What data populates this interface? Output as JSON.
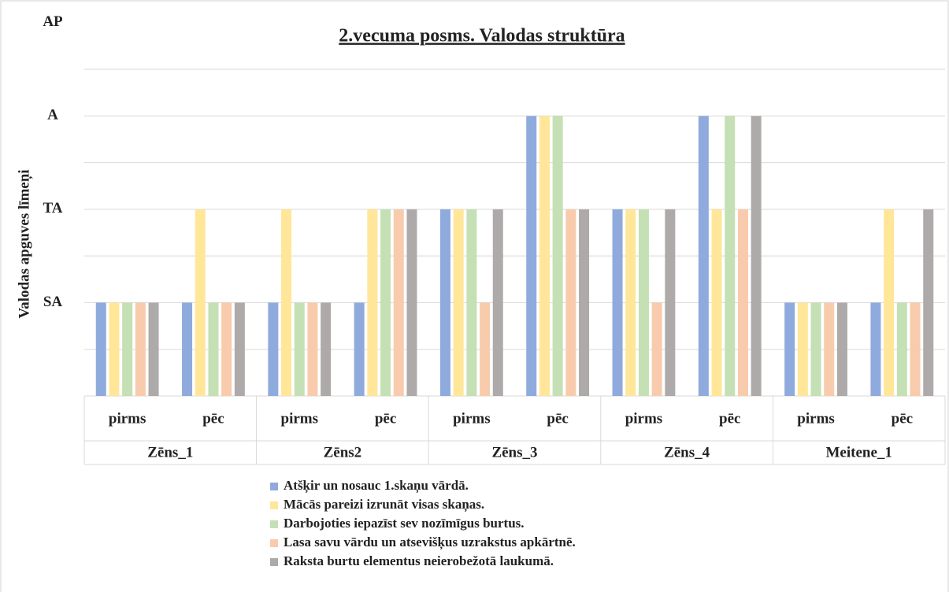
{
  "chart_data": {
    "type": "bar",
    "title": "2.vecuma posms. Valodas struktūra",
    "y_label": "Valodas apguves līmeņi",
    "categories": [
      "pirms",
      "pēc",
      "pirms",
      "pēc",
      "pirms",
      "pēc",
      "pirms",
      "pēc",
      "pirms",
      "pēc"
    ],
    "groups": [
      "Zēns_1",
      "Zēns2",
      "Zēns_3",
      "Zēns_4",
      "Meitene_1"
    ],
    "series": [
      {
        "name": "Atšķir un nosauc 1.skaņu vārdā.",
        "color": "#8faadc",
        "values": [
          1,
          1,
          1,
          1,
          2,
          3,
          2,
          3,
          1,
          1
        ]
      },
      {
        "name": "Mācās pareizi izrunāt visas skaņas.",
        "color": "#ffe699",
        "values": [
          1,
          2,
          2,
          2,
          2,
          3,
          2,
          2,
          1,
          2
        ]
      },
      {
        "name": "Darbojoties iepazīst sev nozīmīgus burtus.",
        "color": "#c5e0b4",
        "values": [
          1,
          1,
          1,
          2,
          2,
          3,
          2,
          3,
          1,
          1
        ]
      },
      {
        "name": "Lasa savu vārdu un atsevišķus uzrakstus apkārtnē.",
        "color": "#f8cbad",
        "values": [
          1,
          1,
          1,
          2,
          1,
          2,
          1,
          2,
          1,
          1
        ]
      },
      {
        "name": "Raksta burtu elementus neierobežotā laukumā.",
        "color": "#aeaaaa",
        "values": [
          1,
          1,
          1,
          2,
          2,
          2,
          2,
          3,
          1,
          2
        ]
      }
    ],
    "ylim": [
      0,
      3.5
    ],
    "yticks": [
      {
        "value": 1,
        "label": "SA"
      },
      {
        "value": 2,
        "label": "TA"
      },
      {
        "value": 3,
        "label": "A"
      },
      {
        "value": 4,
        "label": "AP"
      }
    ],
    "grid_lines": [
      0,
      0.5,
      1,
      1.5,
      2,
      2.5,
      3,
      3.5
    ],
    "grid": true
  }
}
